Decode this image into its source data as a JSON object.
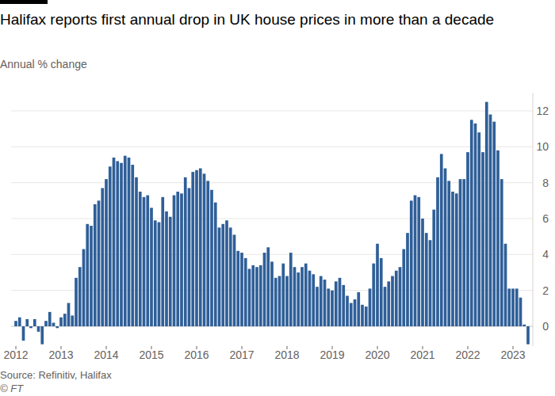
{
  "chart_data": {
    "type": "bar",
    "title": "Halifax reports first annual drop in UK house prices in more than a decade",
    "subtitle": "Annual % change",
    "source": "Source: Refinitiv, Halifax",
    "credit": "© FT",
    "color": "#2f5f98",
    "grid": true,
    "ylim": [
      -1.1,
      13
    ],
    "yticks": [
      0,
      2,
      4,
      6,
      8,
      10,
      12
    ],
    "categories": [
      "2012",
      null,
      null,
      null,
      null,
      null,
      null,
      null,
      null,
      null,
      null,
      null,
      "2013",
      null,
      null,
      null,
      null,
      null,
      null,
      null,
      null,
      null,
      null,
      null,
      "2014",
      null,
      null,
      null,
      null,
      null,
      null,
      null,
      null,
      null,
      null,
      null,
      "2015",
      null,
      null,
      null,
      null,
      null,
      null,
      null,
      null,
      null,
      null,
      null,
      "2016",
      null,
      null,
      null,
      null,
      null,
      null,
      null,
      null,
      null,
      null,
      null,
      "2017",
      null,
      null,
      null,
      null,
      null,
      null,
      null,
      null,
      null,
      null,
      null,
      "2018",
      null,
      null,
      null,
      null,
      null,
      null,
      null,
      null,
      null,
      null,
      null,
      "2019",
      null,
      null,
      null,
      null,
      null,
      null,
      null,
      null,
      null,
      null,
      null,
      "2020",
      null,
      null,
      null,
      null,
      null,
      null,
      null,
      null,
      null,
      null,
      null,
      "2021",
      null,
      null,
      null,
      null,
      null,
      null,
      null,
      null,
      null,
      null,
      null,
      "2022",
      null,
      null,
      null,
      null,
      null,
      null,
      null,
      null,
      null,
      null,
      null,
      "2023",
      null,
      null,
      null,
      null
    ],
    "values": [
      0.3,
      0.5,
      -0.8,
      0.4,
      -0.1,
      0.4,
      -0.3,
      -1.0,
      0.3,
      0.8,
      0.2,
      -0.1,
      0.5,
      0.7,
      1.3,
      0.6,
      2.7,
      3.3,
      4.3,
      5.7,
      5.6,
      6.8,
      7.0,
      7.7,
      8.2,
      8.9,
      9.4,
      9.2,
      9.1,
      9.5,
      9.4,
      9.0,
      8.3,
      7.5,
      7.2,
      7.3,
      6.6,
      5.9,
      5.8,
      7.2,
      6.4,
      6.1,
      7.3,
      7.5,
      7.4,
      8.3,
      7.7,
      8.6,
      8.7,
      8.8,
      8.5,
      8.1,
      7.6,
      6.9,
      5.5,
      5.7,
      5.9,
      5.5,
      5.1,
      4.2,
      4.1,
      3.8,
      3.2,
      3.4,
      3.3,
      3.4,
      4.1,
      4.4,
      3.6,
      2.7,
      2.8,
      3.5,
      2.8,
      4.1,
      3.3,
      3.0,
      3.3,
      3.5,
      3.1,
      2.9,
      2.2,
      2.8,
      2.6,
      2.1,
      2.0,
      2.5,
      2.7,
      2.3,
      1.7,
      1.3,
      1.5,
      1.9,
      1.2,
      1.1,
      2.1,
      3.5,
      4.6,
      3.8,
      2.2,
      2.5,
      2.8,
      3.1,
      3.3,
      4.3,
      5.2,
      7.0,
      7.3,
      7.2,
      6.0,
      5.2,
      4.8,
      6.5,
      8.3,
      9.6,
      8.8,
      8.1,
      7.5,
      7.4,
      8.2,
      8.2,
      9.7,
      11.5,
      11.3,
      10.8,
      9.7,
      12.5,
      11.8,
      11.4,
      9.8,
      8.2,
      4.6,
      2.1,
      2.1,
      2.1,
      1.6,
      0.1,
      -1.0
    ]
  }
}
